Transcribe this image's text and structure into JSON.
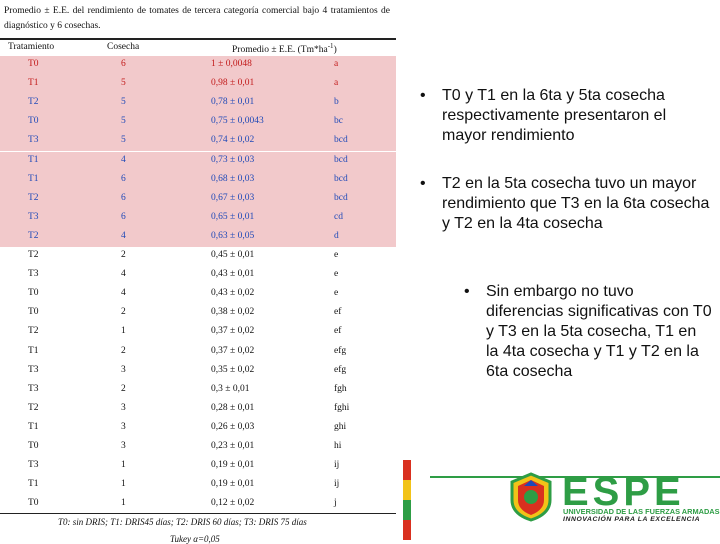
{
  "caption": "Promedio ± E.E. del rendimiento de tomates de tercera categoría comercial bajo 4 tratamientos de diagnóstico y 6 cosechas.",
  "table": {
    "headers": [
      "Tratamiento",
      "Cosecha",
      "Promedio ± E.E. (Tm*ha",
      "-1",
      ")"
    ],
    "rows": [
      {
        "t": "T0",
        "c": "6",
        "m": "1 ± 0,0048",
        "g": "a"
      },
      {
        "t": "T1",
        "c": "5",
        "m": "0,98 ± 0,01",
        "g": "a"
      },
      {
        "t": "T2",
        "c": "5",
        "m": "0,78 ± 0,01",
        "g": "b"
      },
      {
        "t": "T0",
        "c": "5",
        "m": "0,75 ± 0,0043",
        "g": "bc"
      },
      {
        "t": "T3",
        "c": "5",
        "m": "0,74 ± 0,02",
        "g": "bcd"
      },
      {
        "t": "T1",
        "c": "4",
        "m": "0,73 ± 0,03",
        "g": "bcd"
      },
      {
        "t": "T1",
        "c": "6",
        "m": "0,68 ± 0,03",
        "g": "bcd"
      },
      {
        "t": "T2",
        "c": "6",
        "m": "0,67 ± 0,03",
        "g": "bcd"
      },
      {
        "t": "T3",
        "c": "6",
        "m": "0,65 ± 0,01",
        "g": "cd"
      },
      {
        "t": "T2",
        "c": "4",
        "m": "0,63 ± 0,05",
        "g": "d"
      },
      {
        "t": "T2",
        "c": "2",
        "m": "0,45 ± 0,01",
        "g": "e"
      },
      {
        "t": "T3",
        "c": "4",
        "m": "0,43 ± 0,01",
        "g": "e"
      },
      {
        "t": "T0",
        "c": "4",
        "m": "0,43 ± 0,02",
        "g": "e"
      },
      {
        "t": "T0",
        "c": "2",
        "m": "0,38 ± 0,02",
        "g": "ef"
      },
      {
        "t": "T2",
        "c": "1",
        "m": "0,37 ± 0,02",
        "g": "ef"
      },
      {
        "t": "T1",
        "c": "2",
        "m": "0,37 ± 0,02",
        "g": "efg"
      },
      {
        "t": "T3",
        "c": "3",
        "m": "0,35 ± 0,02",
        "g": "efg"
      },
      {
        "t": "T3",
        "c": "2",
        "m": "0,3 ± 0,01",
        "g": "fgh"
      },
      {
        "t": "T2",
        "c": "3",
        "m": "0,28 ± 0,01",
        "g": "fghi"
      },
      {
        "t": "T1",
        "c": "3",
        "m": "0,26 ± 0,03",
        "g": "ghi"
      },
      {
        "t": "T0",
        "c": "3",
        "m": "0,23 ± 0,01",
        "g": "hi"
      },
      {
        "t": "T3",
        "c": "1",
        "m": "0,19 ± 0,01",
        "g": "ij"
      },
      {
        "t": "T1",
        "c": "1",
        "m": "0,19 ± 0,01",
        "g": "ij"
      },
      {
        "t": "T0",
        "c": "1",
        "m": "0,12 ± 0,02",
        "g": "j"
      }
    ],
    "highlight_color": "#f2c9cb"
  },
  "footnote": "T0: sin DRIS; T1: DRIS45 días; T2: DRIS 60 días; T3: DRIS 75 días",
  "footnote2": "Tukey α=0,05",
  "bullets": [
    "T0 y T1 en la 6ta y 5ta cosecha respectivamente presentaron el mayor rendimiento",
    "T2 en la 5ta cosecha tuvo un mayor rendimiento que T3 en la 6ta cosecha y T2 en la 4ta cosecha",
    "Sin embargo no tuvo diferencias significativas con T0 y T3 en la 5ta cosecha, T1 en la 4ta cosecha y T1 y T2 en la 6ta cosecha"
  ],
  "bullet_symbol": "•",
  "logo": {
    "brand": "ESPE",
    "university": "UNIVERSIDAD DE LAS FUERZAS ARMADAS",
    "tagline": "INNOVACIÓN PARA LA EXCELENCIA",
    "green": "#2e9d45"
  }
}
